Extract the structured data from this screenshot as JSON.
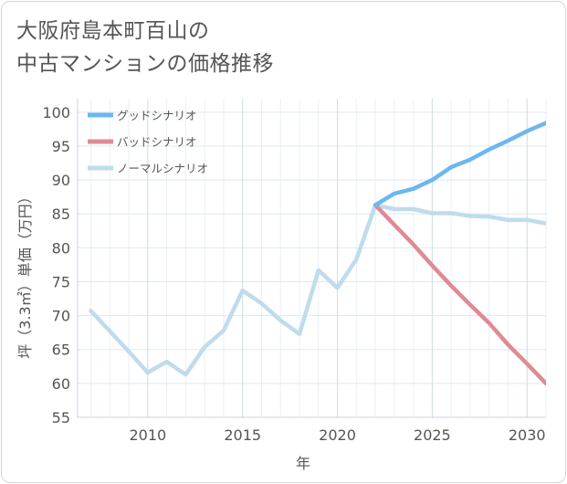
{
  "title_line1": "大阪府島本町百山の",
  "title_line2": "中古マンションの価格推移",
  "chart_data": {
    "type": "line",
    "title": "大阪府島本町百山の中古マンションの価格推移",
    "xlabel": "年",
    "ylabel": "坪（3.3㎡）単価（万円）",
    "xlim": [
      2006.3,
      2031
    ],
    "ylim": [
      55,
      102
    ],
    "x_ticks": [
      2010,
      2015,
      2020,
      2025,
      2030
    ],
    "y_ticks": [
      55,
      60,
      65,
      70,
      75,
      80,
      85,
      90,
      95,
      100
    ],
    "grid": true,
    "legend_position": "top-left",
    "series": [
      {
        "name": "グッドシナリオ",
        "color": "#6cb7ef",
        "x": [
          2022,
          2023,
          2024,
          2025,
          2026,
          2027,
          2028,
          2029,
          2030,
          2031
        ],
        "y": [
          86.3,
          88.0,
          88.7,
          90.0,
          91.9,
          93.0,
          94.5,
          95.8,
          97.2,
          98.4
        ]
      },
      {
        "name": "バッドシナリオ",
        "color": "#de8b94",
        "x": [
          2022,
          2023,
          2024,
          2025,
          2026,
          2027,
          2028,
          2029,
          2030,
          2031
        ],
        "y": [
          86.3,
          83.4,
          80.5,
          77.4,
          74.4,
          71.6,
          68.9,
          65.7,
          62.9,
          60.0
        ]
      },
      {
        "name": "ノーマルシナリオ",
        "color": "#bfdcec",
        "x": [
          2007,
          2008,
          2009,
          2010,
          2011,
          2012,
          2013,
          2014,
          2015,
          2016,
          2017,
          2018,
          2019,
          2020,
          2021,
          2022,
          2023,
          2024,
          2025,
          2026,
          2027,
          2028,
          2029,
          2030,
          2031
        ],
        "y": [
          70.7,
          67.7,
          64.7,
          61.6,
          63.2,
          61.3,
          65.4,
          67.8,
          73.7,
          71.8,
          69.3,
          67.3,
          76.7,
          74.1,
          78.3,
          86.3,
          85.7,
          85.7,
          85.1,
          85.1,
          84.7,
          84.6,
          84.1,
          84.1,
          83.6
        ]
      }
    ]
  }
}
